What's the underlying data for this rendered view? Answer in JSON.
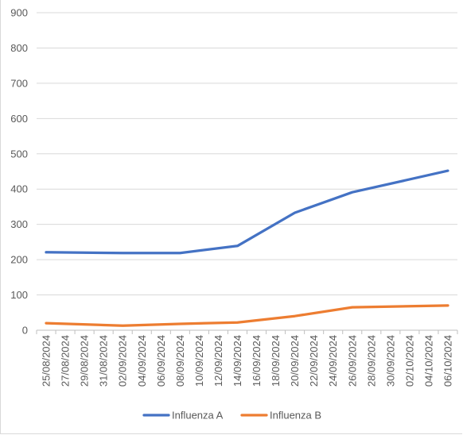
{
  "chart_data": {
    "type": "line",
    "title": "",
    "xlabel": "",
    "ylabel": "",
    "ylim": [
      0,
      900
    ],
    "yticks": [
      0,
      100,
      200,
      300,
      400,
      500,
      600,
      700,
      800,
      900
    ],
    "grid": true,
    "legend_position": "bottom",
    "x": [
      "25/08/2024",
      "27/08/2024",
      "29/08/2024",
      "31/08/2024",
      "02/09/2024",
      "04/09/2024",
      "06/09/2024",
      "08/09/2024",
      "10/09/2024",
      "12/09/2024",
      "14/09/2024",
      "16/09/2024",
      "18/09/2024",
      "20/09/2024",
      "22/09/2024",
      "24/09/2024",
      "26/09/2024",
      "28/09/2024",
      "30/09/2024",
      "02/10/2024",
      "04/10/2024",
      "06/10/2024"
    ],
    "series": [
      {
        "name": "Influenza A",
        "color": "#4472c4",
        "points": [
          {
            "x": "25/08/2024",
            "y": 221
          },
          {
            "x": "02/09/2024",
            "y": 219
          },
          {
            "x": "08/09/2024",
            "y": 219
          },
          {
            "x": "14/09/2024",
            "y": 239
          },
          {
            "x": "20/09/2024",
            "y": 333
          },
          {
            "x": "26/09/2024",
            "y": 391
          },
          {
            "x": "06/10/2024",
            "y": 452
          }
        ]
      },
      {
        "name": "Influenza B",
        "color": "#ed7d31",
        "points": [
          {
            "x": "25/08/2024",
            "y": 20
          },
          {
            "x": "02/09/2024",
            "y": 13
          },
          {
            "x": "08/09/2024",
            "y": 18
          },
          {
            "x": "14/09/2024",
            "y": 22
          },
          {
            "x": "20/09/2024",
            "y": 40
          },
          {
            "x": "26/09/2024",
            "y": 65
          },
          {
            "x": "06/10/2024",
            "y": 70
          }
        ]
      }
    ]
  }
}
